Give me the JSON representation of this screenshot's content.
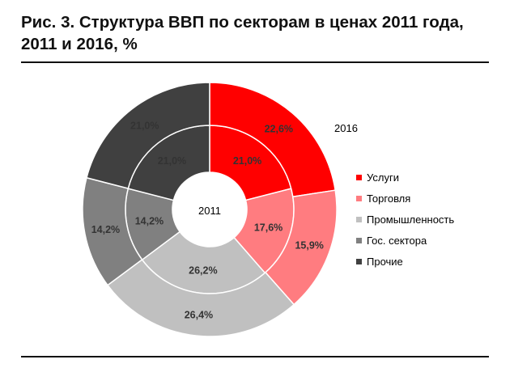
{
  "header": {
    "title": "Рис. 3. Структура ВВП по секторам в ценах 2011 года, 2011 и 2016, %"
  },
  "chart_data": {
    "type": "pie",
    "subtype": "doughnut",
    "title": "Рис. 3. Структура ВВП по секторам в ценах 2011 года, 2011 и 2016, %",
    "categories": [
      "Услуги",
      "Торговля",
      "Промышленность",
      "Гос. сектора",
      "Прочие"
    ],
    "colors": [
      "#ff0000",
      "#ff7c80",
      "#c0c0c0",
      "#808080",
      "#404040"
    ],
    "series": [
      {
        "name": "2011",
        "values": [
          21.0,
          17.6,
          26.2,
          14.2,
          21.0
        ],
        "labels": [
          "21,0%",
          "17,6%",
          "26,2%",
          "14,2%",
          "21,0%"
        ]
      },
      {
        "name": "2016",
        "values": [
          22.6,
          15.9,
          26.4,
          14.2,
          21.0
        ],
        "labels": [
          "22,6%",
          "15,9%",
          "26,4%",
          "14,2%",
          "21,0%"
        ]
      }
    ],
    "legend_position": "right"
  }
}
